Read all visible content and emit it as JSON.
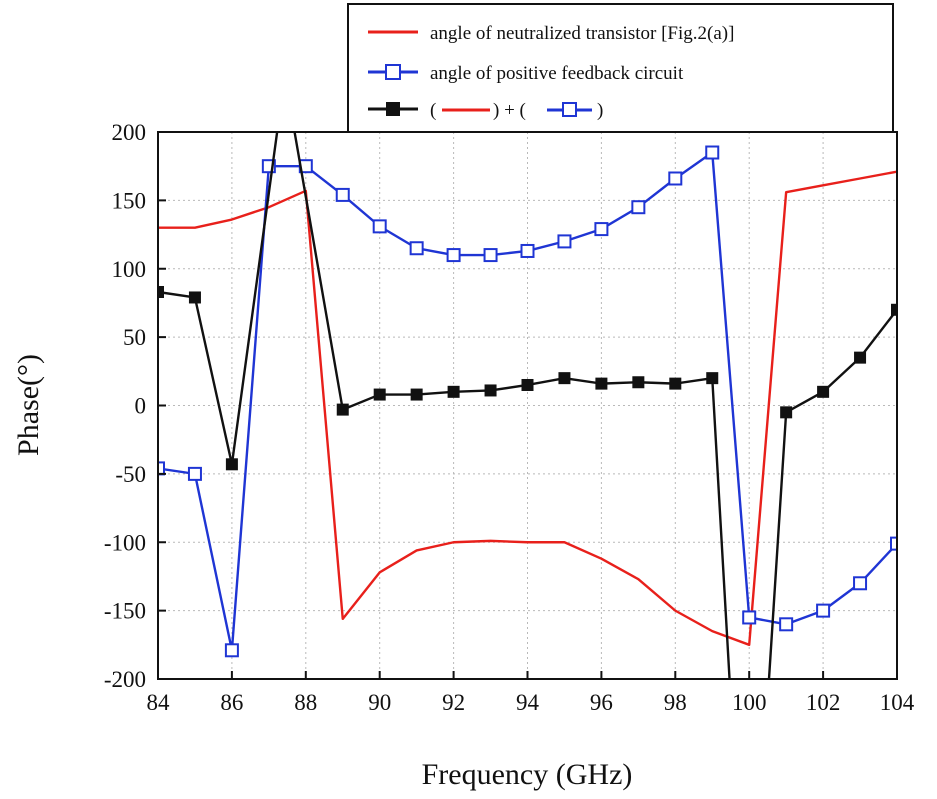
{
  "chart_data": {
    "type": "line",
    "title": "",
    "xlabel": "Frequency (GHz)",
    "ylabel": "Phase(°)",
    "xlim": [
      84,
      104
    ],
    "ylim": [
      -200,
      200
    ],
    "xticks": [
      84,
      86,
      88,
      90,
      92,
      94,
      96,
      98,
      100,
      102,
      104
    ],
    "yticks": [
      200,
      150,
      100,
      50,
      0,
      -50,
      -100,
      -150,
      -200
    ],
    "grid": true,
    "legend_position": "top-right",
    "series": [
      {
        "name": "angle of neutralized  transistor [Fig.2(a)]",
        "color": "#e8201b",
        "marker": "none",
        "x": [
          84,
          85,
          86,
          87,
          88,
          89,
          90,
          91,
          92,
          93,
          94,
          95,
          96,
          97,
          98,
          99,
          100,
          101,
          102,
          103,
          104
        ],
        "values": [
          130,
          130,
          136,
          145,
          157,
          -156,
          -122,
          -106,
          -100,
          -99,
          -100,
          -100,
          -112,
          -127,
          -150,
          -165,
          -175,
          156,
          161,
          166,
          171
        ]
      },
      {
        "name": "angle of positive feedback circuit",
        "color": "#1f35d4",
        "marker": "open-square",
        "x": [
          84,
          85,
          86,
          87,
          88,
          89,
          90,
          91,
          92,
          93,
          94,
          95,
          96,
          97,
          98,
          99,
          100,
          101,
          102,
          103,
          104
        ],
        "values": [
          -46,
          -50,
          -179,
          175,
          175,
          154,
          131,
          115,
          110,
          110,
          113,
          120,
          129,
          145,
          166,
          185,
          -155,
          -160,
          -150,
          -130,
          -101
        ]
      },
      {
        "name": "( red ) + ( blue )",
        "color": "#111111",
        "marker": "filled-square",
        "x": [
          84,
          85,
          86,
          87.3,
          87.6,
          89,
          90,
          91,
          92,
          93,
          94,
          95,
          96,
          97,
          98,
          99,
          99.5,
          100.5,
          101,
          102,
          103,
          104
        ],
        "values": [
          83,
          79,
          -43,
          215,
          215,
          -3,
          8,
          8,
          10,
          11,
          15,
          20,
          16,
          17,
          16,
          20,
          -215,
          -215,
          -5,
          10,
          35,
          70
        ],
        "marker_x": [
          84,
          85,
          86,
          89,
          90,
          91,
          92,
          93,
          94,
          95,
          96,
          97,
          98,
          99,
          101,
          102,
          103,
          104
        ]
      }
    ],
    "legend": {
      "entries": [
        {
          "label": "angle of neutralized  transistor [Fig.2(a)]"
        },
        {
          "label": "angle of positive feedback circuit"
        },
        {
          "label_open": "(",
          "label_plus": ") + (",
          "label_close": ")"
        }
      ]
    }
  }
}
